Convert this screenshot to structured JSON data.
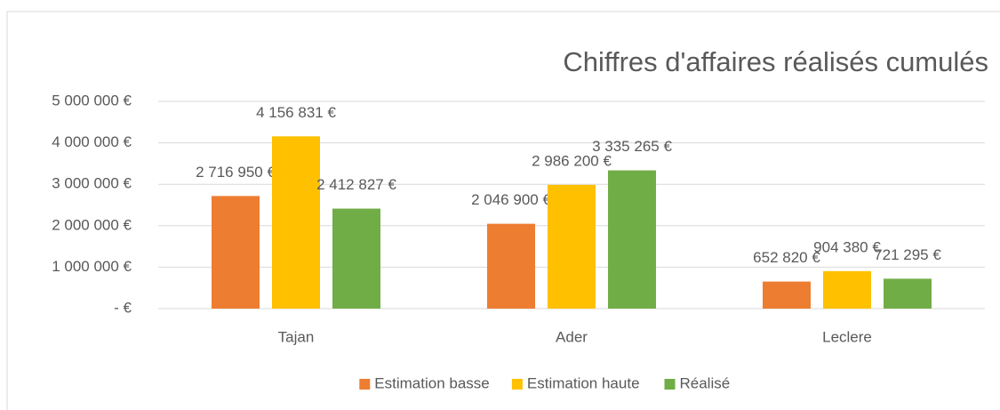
{
  "chart_data": {
    "type": "bar",
    "title": "Chiffres d'affaires réalisés cumulés",
    "categories": [
      "Tajan",
      "Ader",
      "Leclere"
    ],
    "series": [
      {
        "name": "Estimation basse",
        "color": "#ed7d31",
        "values": [
          2716950,
          2046900,
          652820
        ],
        "value_labels": [
          "2 716 950 €",
          "2 046 900 €",
          "652 820 €"
        ]
      },
      {
        "name": "Estimation haute",
        "color": "#ffc000",
        "values": [
          4156831,
          2986200,
          904380
        ],
        "value_labels": [
          "4 156 831 €",
          "2 986 200 €",
          "904 380 €"
        ]
      },
      {
        "name": "Réalisé",
        "color": "#70ad47",
        "values": [
          2412827,
          3335265,
          721295
        ],
        "value_labels": [
          "2 412 827 €",
          "3 335 265 €",
          "721 295 €"
        ]
      }
    ],
    "ylim": [
      0,
      5000000
    ],
    "yticks": [
      {
        "value": 0,
        "label": "-   €"
      },
      {
        "value": 1000000,
        "label": "1 000 000 €"
      },
      {
        "value": 2000000,
        "label": "2 000 000 €"
      },
      {
        "value": 3000000,
        "label": "3 000 000 €"
      },
      {
        "value": 4000000,
        "label": "4 000 000 €"
      },
      {
        "value": 5000000,
        "label": "5 000 000 €"
      }
    ],
    "grid": true,
    "legend": "bottom"
  }
}
